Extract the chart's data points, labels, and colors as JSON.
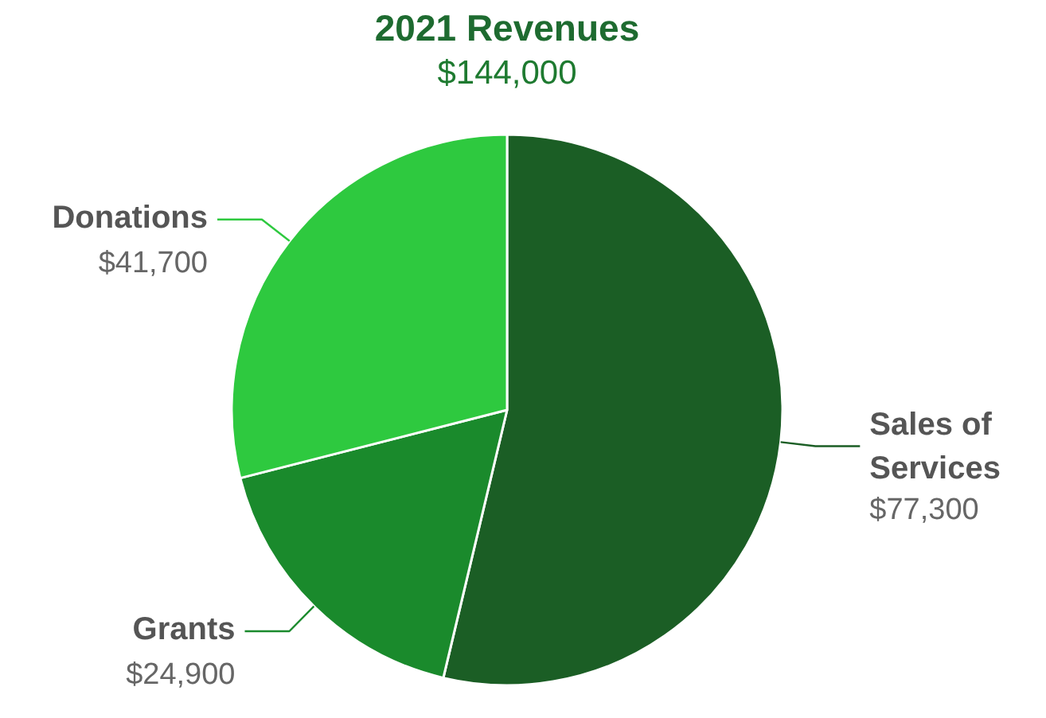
{
  "chart_data": {
    "type": "pie",
    "title": "2021 Revenues",
    "subtitle": "$144,000",
    "categories": [
      "Sales of Services",
      "Grants",
      "Donations"
    ],
    "values": [
      77300,
      24900,
      41700
    ],
    "colors": [
      "#1b5e25",
      "#1a8a2c",
      "#2ec93f"
    ],
    "value_labels": [
      "$77,300",
      "$24,900",
      "$41,700"
    ]
  }
}
